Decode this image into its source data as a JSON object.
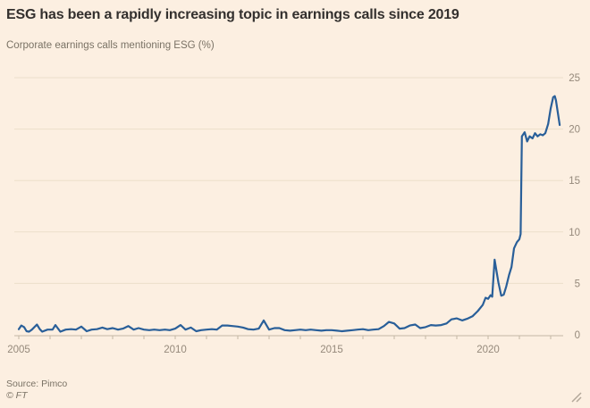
{
  "header": {
    "title": "ESG has been a rapidly increasing topic in earnings calls since 2019",
    "subtitle": "Corporate earnings calls mentioning ESG (%)"
  },
  "footer": {
    "source": "Source: Pimco",
    "copyright": "© FT"
  },
  "icons": {
    "resize_handle": "diagonal-resize-icon"
  },
  "colors": {
    "background": "#fcefe1",
    "title": "#33302e",
    "subtitle": "#7a7265",
    "axis_label": "#95897b",
    "gridline": "#ecdfca",
    "axis_line": "#c3b7a5",
    "line": "#295f99",
    "resize_icon": "#b3a89a"
  },
  "chart_data": {
    "type": "line",
    "title": "ESG has been a rapidly increasing topic in earnings calls since 2019",
    "subtitle": "Corporate earnings calls mentioning ESG (%)",
    "xlabel": "",
    "ylabel": "Corporate earnings calls mentioning ESG (%)",
    "x_range": [
      2005,
      2022.4
    ],
    "y_range": [
      0,
      25
    ],
    "x_ticks": [
      2005,
      2010,
      2015,
      2020
    ],
    "y_ticks": [
      0,
      5,
      10,
      15,
      20,
      25
    ],
    "grid": "horizontal",
    "y_axis_side": "right",
    "legend": "none",
    "series": [
      {
        "name": "Earnings calls mentioning ESG (%)",
        "color": "#295f99",
        "points": [
          [
            2005.0,
            0.55
          ],
          [
            2005.08,
            0.9
          ],
          [
            2005.17,
            0.75
          ],
          [
            2005.25,
            0.35
          ],
          [
            2005.33,
            0.3
          ],
          [
            2005.42,
            0.5
          ],
          [
            2005.58,
            1.0
          ],
          [
            2005.67,
            0.55
          ],
          [
            2005.75,
            0.3
          ],
          [
            2005.92,
            0.5
          ],
          [
            2006.08,
            0.5
          ],
          [
            2006.17,
            0.95
          ],
          [
            2006.33,
            0.3
          ],
          [
            2006.5,
            0.5
          ],
          [
            2006.67,
            0.55
          ],
          [
            2006.83,
            0.5
          ],
          [
            2007.0,
            0.8
          ],
          [
            2007.17,
            0.35
          ],
          [
            2007.33,
            0.5
          ],
          [
            2007.5,
            0.55
          ],
          [
            2007.67,
            0.7
          ],
          [
            2007.83,
            0.55
          ],
          [
            2008.0,
            0.65
          ],
          [
            2008.17,
            0.5
          ],
          [
            2008.33,
            0.6
          ],
          [
            2008.5,
            0.85
          ],
          [
            2008.67,
            0.5
          ],
          [
            2008.83,
            0.65
          ],
          [
            2009.0,
            0.5
          ],
          [
            2009.17,
            0.45
          ],
          [
            2009.33,
            0.5
          ],
          [
            2009.5,
            0.45
          ],
          [
            2009.67,
            0.5
          ],
          [
            2009.83,
            0.45
          ],
          [
            2010.0,
            0.6
          ],
          [
            2010.17,
            0.95
          ],
          [
            2010.33,
            0.5
          ],
          [
            2010.5,
            0.7
          ],
          [
            2010.67,
            0.35
          ],
          [
            2010.83,
            0.45
          ],
          [
            2011.0,
            0.5
          ],
          [
            2011.17,
            0.55
          ],
          [
            2011.33,
            0.5
          ],
          [
            2011.5,
            0.9
          ],
          [
            2011.67,
            0.9
          ],
          [
            2011.83,
            0.85
          ],
          [
            2012.0,
            0.8
          ],
          [
            2012.17,
            0.7
          ],
          [
            2012.33,
            0.55
          ],
          [
            2012.5,
            0.5
          ],
          [
            2012.67,
            0.6
          ],
          [
            2012.83,
            1.4
          ],
          [
            2013.0,
            0.5
          ],
          [
            2013.17,
            0.65
          ],
          [
            2013.33,
            0.65
          ],
          [
            2013.5,
            0.45
          ],
          [
            2013.67,
            0.4
          ],
          [
            2013.83,
            0.45
          ],
          [
            2014.0,
            0.5
          ],
          [
            2014.17,
            0.45
          ],
          [
            2014.33,
            0.5
          ],
          [
            2014.5,
            0.45
          ],
          [
            2014.67,
            0.4
          ],
          [
            2014.83,
            0.45
          ],
          [
            2015.0,
            0.45
          ],
          [
            2015.17,
            0.4
          ],
          [
            2015.33,
            0.35
          ],
          [
            2015.5,
            0.4
          ],
          [
            2015.67,
            0.45
          ],
          [
            2015.83,
            0.5
          ],
          [
            2016.0,
            0.55
          ],
          [
            2016.17,
            0.45
          ],
          [
            2016.33,
            0.5
          ],
          [
            2016.5,
            0.55
          ],
          [
            2016.67,
            0.85
          ],
          [
            2016.83,
            1.25
          ],
          [
            2017.0,
            1.1
          ],
          [
            2017.17,
            0.6
          ],
          [
            2017.33,
            0.65
          ],
          [
            2017.5,
            0.9
          ],
          [
            2017.67,
            1.0
          ],
          [
            2017.83,
            0.65
          ],
          [
            2018.0,
            0.75
          ],
          [
            2018.17,
            0.95
          ],
          [
            2018.33,
            0.9
          ],
          [
            2018.5,
            0.95
          ],
          [
            2018.67,
            1.1
          ],
          [
            2018.83,
            1.5
          ],
          [
            2019.0,
            1.6
          ],
          [
            2019.17,
            1.4
          ],
          [
            2019.33,
            1.55
          ],
          [
            2019.5,
            1.8
          ],
          [
            2019.67,
            2.3
          ],
          [
            2019.83,
            2.9
          ],
          [
            2019.92,
            3.6
          ],
          [
            2020.0,
            3.5
          ],
          [
            2020.08,
            3.85
          ],
          [
            2020.13,
            3.7
          ],
          [
            2020.21,
            7.3
          ],
          [
            2020.33,
            5.1
          ],
          [
            2020.42,
            3.8
          ],
          [
            2020.5,
            3.9
          ],
          [
            2020.58,
            4.7
          ],
          [
            2020.67,
            5.8
          ],
          [
            2020.75,
            6.6
          ],
          [
            2020.83,
            8.4
          ],
          [
            2020.92,
            9.0
          ],
          [
            2021.0,
            9.3
          ],
          [
            2021.04,
            9.8
          ],
          [
            2021.08,
            19.3
          ],
          [
            2021.17,
            19.7
          ],
          [
            2021.25,
            18.8
          ],
          [
            2021.33,
            19.3
          ],
          [
            2021.42,
            19.1
          ],
          [
            2021.5,
            19.6
          ],
          [
            2021.58,
            19.3
          ],
          [
            2021.67,
            19.5
          ],
          [
            2021.75,
            19.4
          ],
          [
            2021.83,
            19.6
          ],
          [
            2021.92,
            20.5
          ],
          [
            2022.0,
            22.0
          ],
          [
            2022.08,
            23.1
          ],
          [
            2022.13,
            23.2
          ],
          [
            2022.17,
            22.8
          ],
          [
            2022.29,
            20.4
          ]
        ]
      }
    ]
  }
}
